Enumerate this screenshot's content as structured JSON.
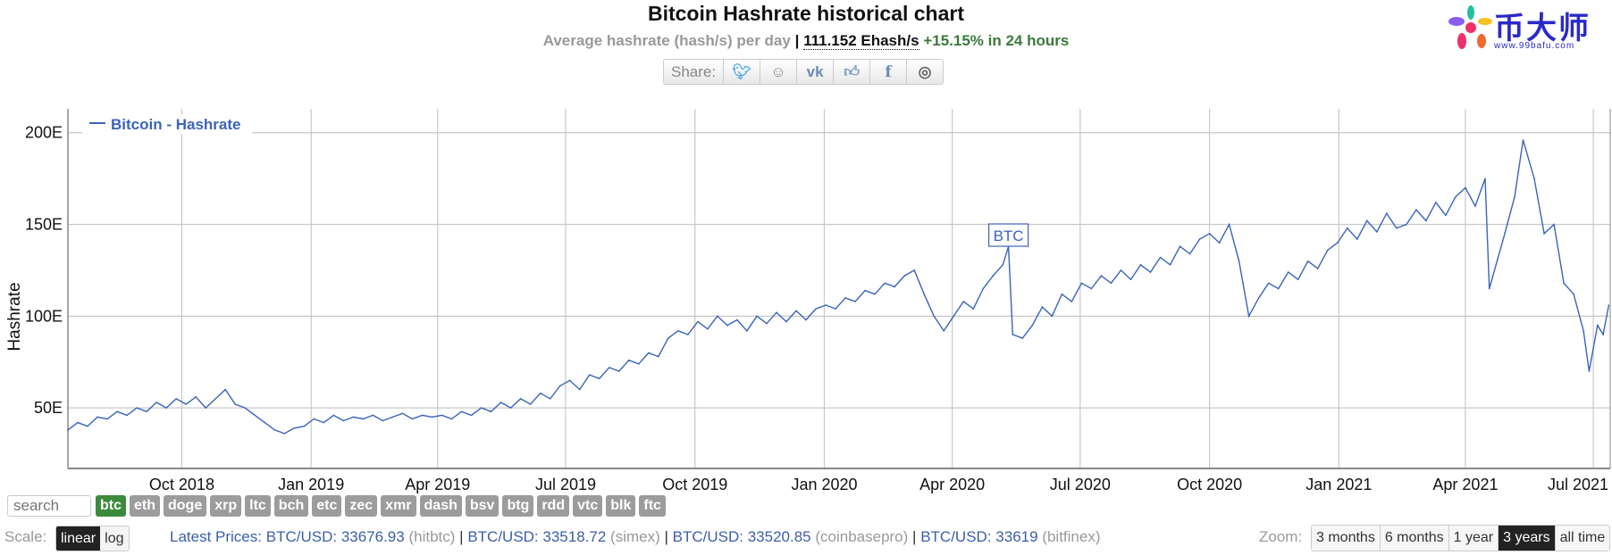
{
  "header": {
    "title": "Bitcoin Hashrate historical chart",
    "subtitle_prefix": "Average hashrate (hash/s) per day",
    "separator": "|",
    "current_value": "111.152 Ehash/s",
    "change": "+15.15% in 24 hours"
  },
  "share": {
    "label": "Share:",
    "icons": [
      "twitter-icon",
      "reddit-icon",
      "vk-icon",
      "like-icon",
      "facebook-icon",
      "weibo-icon"
    ]
  },
  "chart_data": {
    "type": "line",
    "title": "",
    "ylabel": "Hashrate",
    "xlabel": "",
    "ylim": [
      17,
      213
    ],
    "xlim": [
      "2018-07-12",
      "2021-07-13"
    ],
    "grid": true,
    "legend_position": "top-left",
    "y_ticks": [
      {
        "value": 50,
        "label": "50E"
      },
      {
        "value": 100,
        "label": "100E"
      },
      {
        "value": 150,
        "label": "150E"
      },
      {
        "value": 200,
        "label": "200E"
      }
    ],
    "x_ticks": [
      {
        "date": "2018-10-01",
        "label": "Oct 2018"
      },
      {
        "date": "2019-01-01",
        "label": "Jan 2019"
      },
      {
        "date": "2019-04-01",
        "label": "Apr 2019"
      },
      {
        "date": "2019-07-01",
        "label": "Jul 2019"
      },
      {
        "date": "2019-10-01",
        "label": "Oct 2019"
      },
      {
        "date": "2020-01-01",
        "label": "Jan 2020"
      },
      {
        "date": "2020-04-01",
        "label": "Apr 2020"
      },
      {
        "date": "2020-07-01",
        "label": "Jul 2020"
      },
      {
        "date": "2020-10-01",
        "label": "Oct 2020"
      },
      {
        "date": "2021-01-01",
        "label": "Jan 2021"
      },
      {
        "date": "2021-04-01",
        "label": "Apr 2021"
      },
      {
        "date": "2021-07-01",
        "label": "Jul 2021"
      }
    ],
    "series": [
      {
        "name": "Bitcoin - Hashrate",
        "color": "#3a64b8",
        "points": [
          [
            "2018-07-12",
            38
          ],
          [
            "2018-07-19",
            42
          ],
          [
            "2018-07-26",
            40
          ],
          [
            "2018-08-02",
            45
          ],
          [
            "2018-08-09",
            44
          ],
          [
            "2018-08-16",
            48
          ],
          [
            "2018-08-23",
            46
          ],
          [
            "2018-08-30",
            50
          ],
          [
            "2018-09-06",
            48
          ],
          [
            "2018-09-13",
            53
          ],
          [
            "2018-09-20",
            50
          ],
          [
            "2018-09-27",
            55
          ],
          [
            "2018-10-04",
            52
          ],
          [
            "2018-10-11",
            56
          ],
          [
            "2018-10-18",
            50
          ],
          [
            "2018-10-25",
            55
          ],
          [
            "2018-11-01",
            60
          ],
          [
            "2018-11-08",
            52
          ],
          [
            "2018-11-15",
            50
          ],
          [
            "2018-11-22",
            46
          ],
          [
            "2018-11-29",
            42
          ],
          [
            "2018-12-06",
            38
          ],
          [
            "2018-12-13",
            36
          ],
          [
            "2018-12-20",
            39
          ],
          [
            "2018-12-27",
            40
          ],
          [
            "2019-01-03",
            44
          ],
          [
            "2019-01-10",
            42
          ],
          [
            "2019-01-17",
            46
          ],
          [
            "2019-01-24",
            43
          ],
          [
            "2019-01-31",
            45
          ],
          [
            "2019-02-07",
            44
          ],
          [
            "2019-02-14",
            46
          ],
          [
            "2019-02-21",
            43
          ],
          [
            "2019-02-28",
            45
          ],
          [
            "2019-03-07",
            47
          ],
          [
            "2019-03-14",
            44
          ],
          [
            "2019-03-21",
            46
          ],
          [
            "2019-03-28",
            45
          ],
          [
            "2019-04-04",
            46
          ],
          [
            "2019-04-11",
            44
          ],
          [
            "2019-04-18",
            48
          ],
          [
            "2019-04-25",
            46
          ],
          [
            "2019-05-02",
            50
          ],
          [
            "2019-05-09",
            48
          ],
          [
            "2019-05-16",
            53
          ],
          [
            "2019-05-23",
            50
          ],
          [
            "2019-05-30",
            55
          ],
          [
            "2019-06-06",
            52
          ],
          [
            "2019-06-13",
            58
          ],
          [
            "2019-06-20",
            55
          ],
          [
            "2019-06-27",
            62
          ],
          [
            "2019-07-04",
            65
          ],
          [
            "2019-07-11",
            60
          ],
          [
            "2019-07-18",
            68
          ],
          [
            "2019-07-25",
            66
          ],
          [
            "2019-08-01",
            72
          ],
          [
            "2019-08-08",
            70
          ],
          [
            "2019-08-15",
            76
          ],
          [
            "2019-08-22",
            74
          ],
          [
            "2019-08-29",
            80
          ],
          [
            "2019-09-05",
            78
          ],
          [
            "2019-09-12",
            88
          ],
          [
            "2019-09-19",
            92
          ],
          [
            "2019-09-26",
            90
          ],
          [
            "2019-10-03",
            97
          ],
          [
            "2019-10-10",
            93
          ],
          [
            "2019-10-17",
            100
          ],
          [
            "2019-10-24",
            95
          ],
          [
            "2019-10-31",
            98
          ],
          [
            "2019-11-07",
            92
          ],
          [
            "2019-11-14",
            100
          ],
          [
            "2019-11-21",
            96
          ],
          [
            "2019-11-28",
            102
          ],
          [
            "2019-12-05",
            97
          ],
          [
            "2019-12-12",
            103
          ],
          [
            "2019-12-19",
            98
          ],
          [
            "2019-12-26",
            104
          ],
          [
            "2020-01-02",
            106
          ],
          [
            "2020-01-09",
            104
          ],
          [
            "2020-01-16",
            110
          ],
          [
            "2020-01-23",
            108
          ],
          [
            "2020-01-30",
            114
          ],
          [
            "2020-02-06",
            112
          ],
          [
            "2020-02-13",
            118
          ],
          [
            "2020-02-20",
            116
          ],
          [
            "2020-02-27",
            122
          ],
          [
            "2020-03-05",
            125
          ],
          [
            "2020-03-12",
            112
          ],
          [
            "2020-03-19",
            100
          ],
          [
            "2020-03-26",
            92
          ],
          [
            "2020-04-02",
            100
          ],
          [
            "2020-04-09",
            108
          ],
          [
            "2020-04-16",
            104
          ],
          [
            "2020-04-23",
            115
          ],
          [
            "2020-04-30",
            122
          ],
          [
            "2020-05-07",
            128
          ],
          [
            "2020-05-11",
            138
          ],
          [
            "2020-05-14",
            90
          ],
          [
            "2020-05-21",
            88
          ],
          [
            "2020-05-28",
            95
          ],
          [
            "2020-06-04",
            105
          ],
          [
            "2020-06-11",
            100
          ],
          [
            "2020-06-18",
            112
          ],
          [
            "2020-06-25",
            108
          ],
          [
            "2020-07-02",
            118
          ],
          [
            "2020-07-09",
            115
          ],
          [
            "2020-07-16",
            122
          ],
          [
            "2020-07-23",
            118
          ],
          [
            "2020-07-30",
            125
          ],
          [
            "2020-08-06",
            120
          ],
          [
            "2020-08-13",
            128
          ],
          [
            "2020-08-20",
            124
          ],
          [
            "2020-08-27",
            132
          ],
          [
            "2020-09-03",
            128
          ],
          [
            "2020-09-10",
            138
          ],
          [
            "2020-09-17",
            134
          ],
          [
            "2020-09-24",
            142
          ],
          [
            "2020-10-01",
            145
          ],
          [
            "2020-10-08",
            140
          ],
          [
            "2020-10-15",
            150
          ],
          [
            "2020-10-22",
            130
          ],
          [
            "2020-10-29",
            100
          ],
          [
            "2020-11-05",
            110
          ],
          [
            "2020-11-12",
            118
          ],
          [
            "2020-11-19",
            115
          ],
          [
            "2020-11-26",
            124
          ],
          [
            "2020-12-03",
            120
          ],
          [
            "2020-12-10",
            130
          ],
          [
            "2020-12-17",
            126
          ],
          [
            "2020-12-24",
            136
          ],
          [
            "2020-12-31",
            140
          ],
          [
            "2021-01-07",
            148
          ],
          [
            "2021-01-14",
            142
          ],
          [
            "2021-01-21",
            152
          ],
          [
            "2021-01-28",
            146
          ],
          [
            "2021-02-04",
            156
          ],
          [
            "2021-02-11",
            148
          ],
          [
            "2021-02-18",
            150
          ],
          [
            "2021-02-25",
            158
          ],
          [
            "2021-03-04",
            152
          ],
          [
            "2021-03-11",
            162
          ],
          [
            "2021-03-18",
            155
          ],
          [
            "2021-03-25",
            165
          ],
          [
            "2021-04-01",
            170
          ],
          [
            "2021-04-08",
            160
          ],
          [
            "2021-04-15",
            175
          ],
          [
            "2021-04-18",
            115
          ],
          [
            "2021-04-29",
            145
          ],
          [
            "2021-05-06",
            165
          ],
          [
            "2021-05-12",
            196
          ],
          [
            "2021-05-20",
            175
          ],
          [
            "2021-05-27",
            145
          ],
          [
            "2021-06-03",
            150
          ],
          [
            "2021-06-10",
            118
          ],
          [
            "2021-06-17",
            112
          ],
          [
            "2021-06-24",
            92
          ],
          [
            "2021-06-28",
            70
          ],
          [
            "2021-07-04",
            95
          ],
          [
            "2021-07-08",
            90
          ],
          [
            "2021-07-12",
            106
          ]
        ]
      }
    ],
    "annotations": [
      {
        "date": "2020-05-11",
        "label": "BTC"
      }
    ]
  },
  "controls": {
    "search_placeholder": "search",
    "coins": [
      "btc",
      "eth",
      "doge",
      "xrp",
      "ltc",
      "bch",
      "etc",
      "zec",
      "xmr",
      "dash",
      "bsv",
      "btg",
      "rdd",
      "vtc",
      "blk",
      "ftc"
    ],
    "selected_coin": "btc",
    "scale_label": "Scale:",
    "scale_options": [
      "linear",
      "log"
    ],
    "selected_scale": "linear",
    "latest_prices_label": "Latest Prices:",
    "prices": [
      {
        "pair": "BTC/USD:",
        "value": "33676.93",
        "exchange": "(hitbtc)"
      },
      {
        "pair": "BTC/USD:",
        "value": "33518.72",
        "exchange": "(simex)"
      },
      {
        "pair": "BTC/USD:",
        "value": "33520.85",
        "exchange": "(coinbasepro)"
      },
      {
        "pair": "BTC/USD:",
        "value": "33619",
        "exchange": "(bitfinex)"
      }
    ],
    "zoom_label": "Zoom:",
    "zoom_options": [
      "3 months",
      "6 months",
      "1 year",
      "3 years",
      "all time"
    ],
    "selected_zoom": "3 years"
  },
  "watermark": {
    "text": "币大师",
    "url": "www.99bafu.com"
  }
}
